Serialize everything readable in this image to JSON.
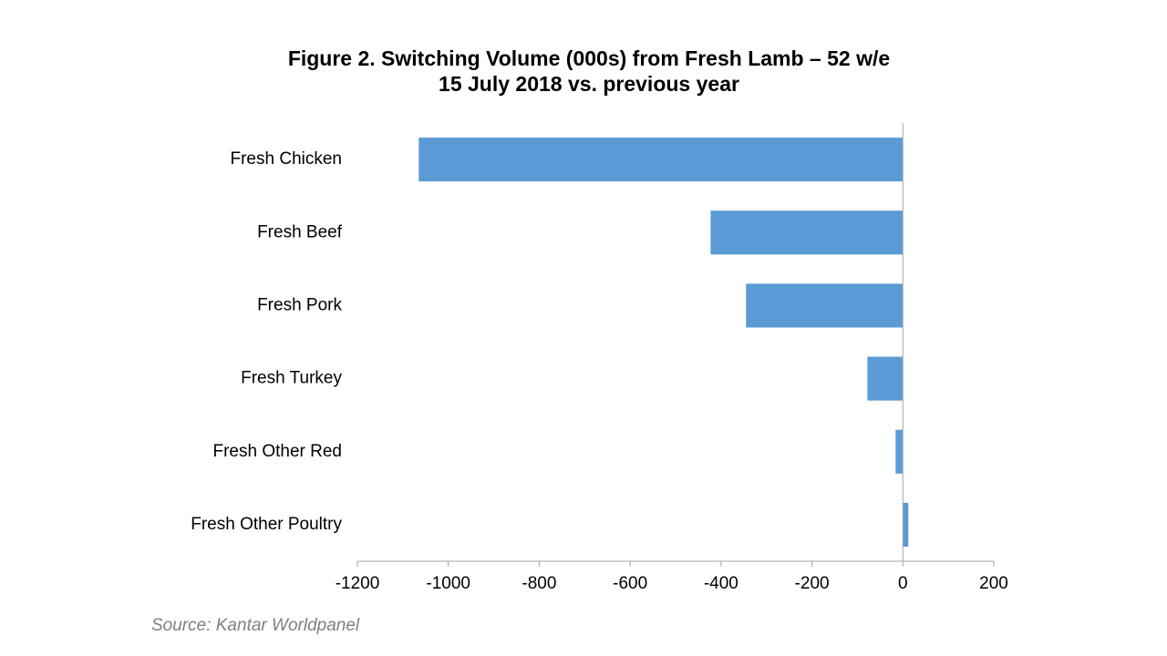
{
  "chart_data": {
    "type": "bar",
    "orientation": "horizontal",
    "title": [
      "Figure 2. Switching Volume (000s) from Fresh Lamb – 52 w/e",
      "15 July 2018 vs. previous year"
    ],
    "categories": [
      "Fresh Chicken",
      "Fresh Beef",
      "Fresh Pork",
      "Fresh Turkey",
      "Fresh Other Red",
      "Fresh Other Poultry"
    ],
    "values": [
      -1065,
      -423,
      -345,
      -78,
      -16,
      12
    ],
    "color": "#5b9bd5",
    "xlim": [
      -1200,
      200
    ],
    "xticks": [
      -1200,
      -1000,
      -800,
      -600,
      -400,
      -200,
      0,
      200
    ],
    "grid": false,
    "source": "Source: Kantar Worldpanel"
  }
}
